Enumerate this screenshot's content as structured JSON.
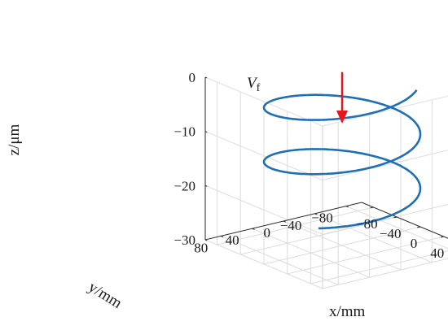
{
  "chart_data": {
    "type": "line3d",
    "title": "",
    "xlabel": "x/mm",
    "ylabel": "y/mm",
    "zlabel": "z/μm",
    "xlim": [
      -100,
      100
    ],
    "ylim": [
      -100,
      100
    ],
    "zlim": [
      -30,
      0
    ],
    "x_ticks": [
      -80,
      -40,
      0,
      40,
      80
    ],
    "y_ticks": [
      80,
      40,
      0,
      -40,
      -80
    ],
    "z_ticks": [
      0,
      -10,
      -20,
      -30
    ],
    "x_tick_labels": [
      "−80",
      "−40",
      "0",
      "40",
      "80"
    ],
    "y_tick_labels": [
      "80",
      "40",
      "0",
      "−40",
      "−80"
    ],
    "z_tick_labels": [
      "0",
      "−10",
      "−20",
      "−30"
    ],
    "grid": true,
    "series": [
      {
        "kind": "helix",
        "radius": 80,
        "z_start": 0,
        "z_end": -22.5,
        "turns": 2.25,
        "color": "#1f6fb5"
      }
    ],
    "annotation": {
      "label_main": "V",
      "label_sub": "f",
      "arrow_color": "#e8141c",
      "arrow_x": 0,
      "arrow_y": 0,
      "arrow_z_from": 2,
      "arrow_z_to": -7.5
    }
  }
}
